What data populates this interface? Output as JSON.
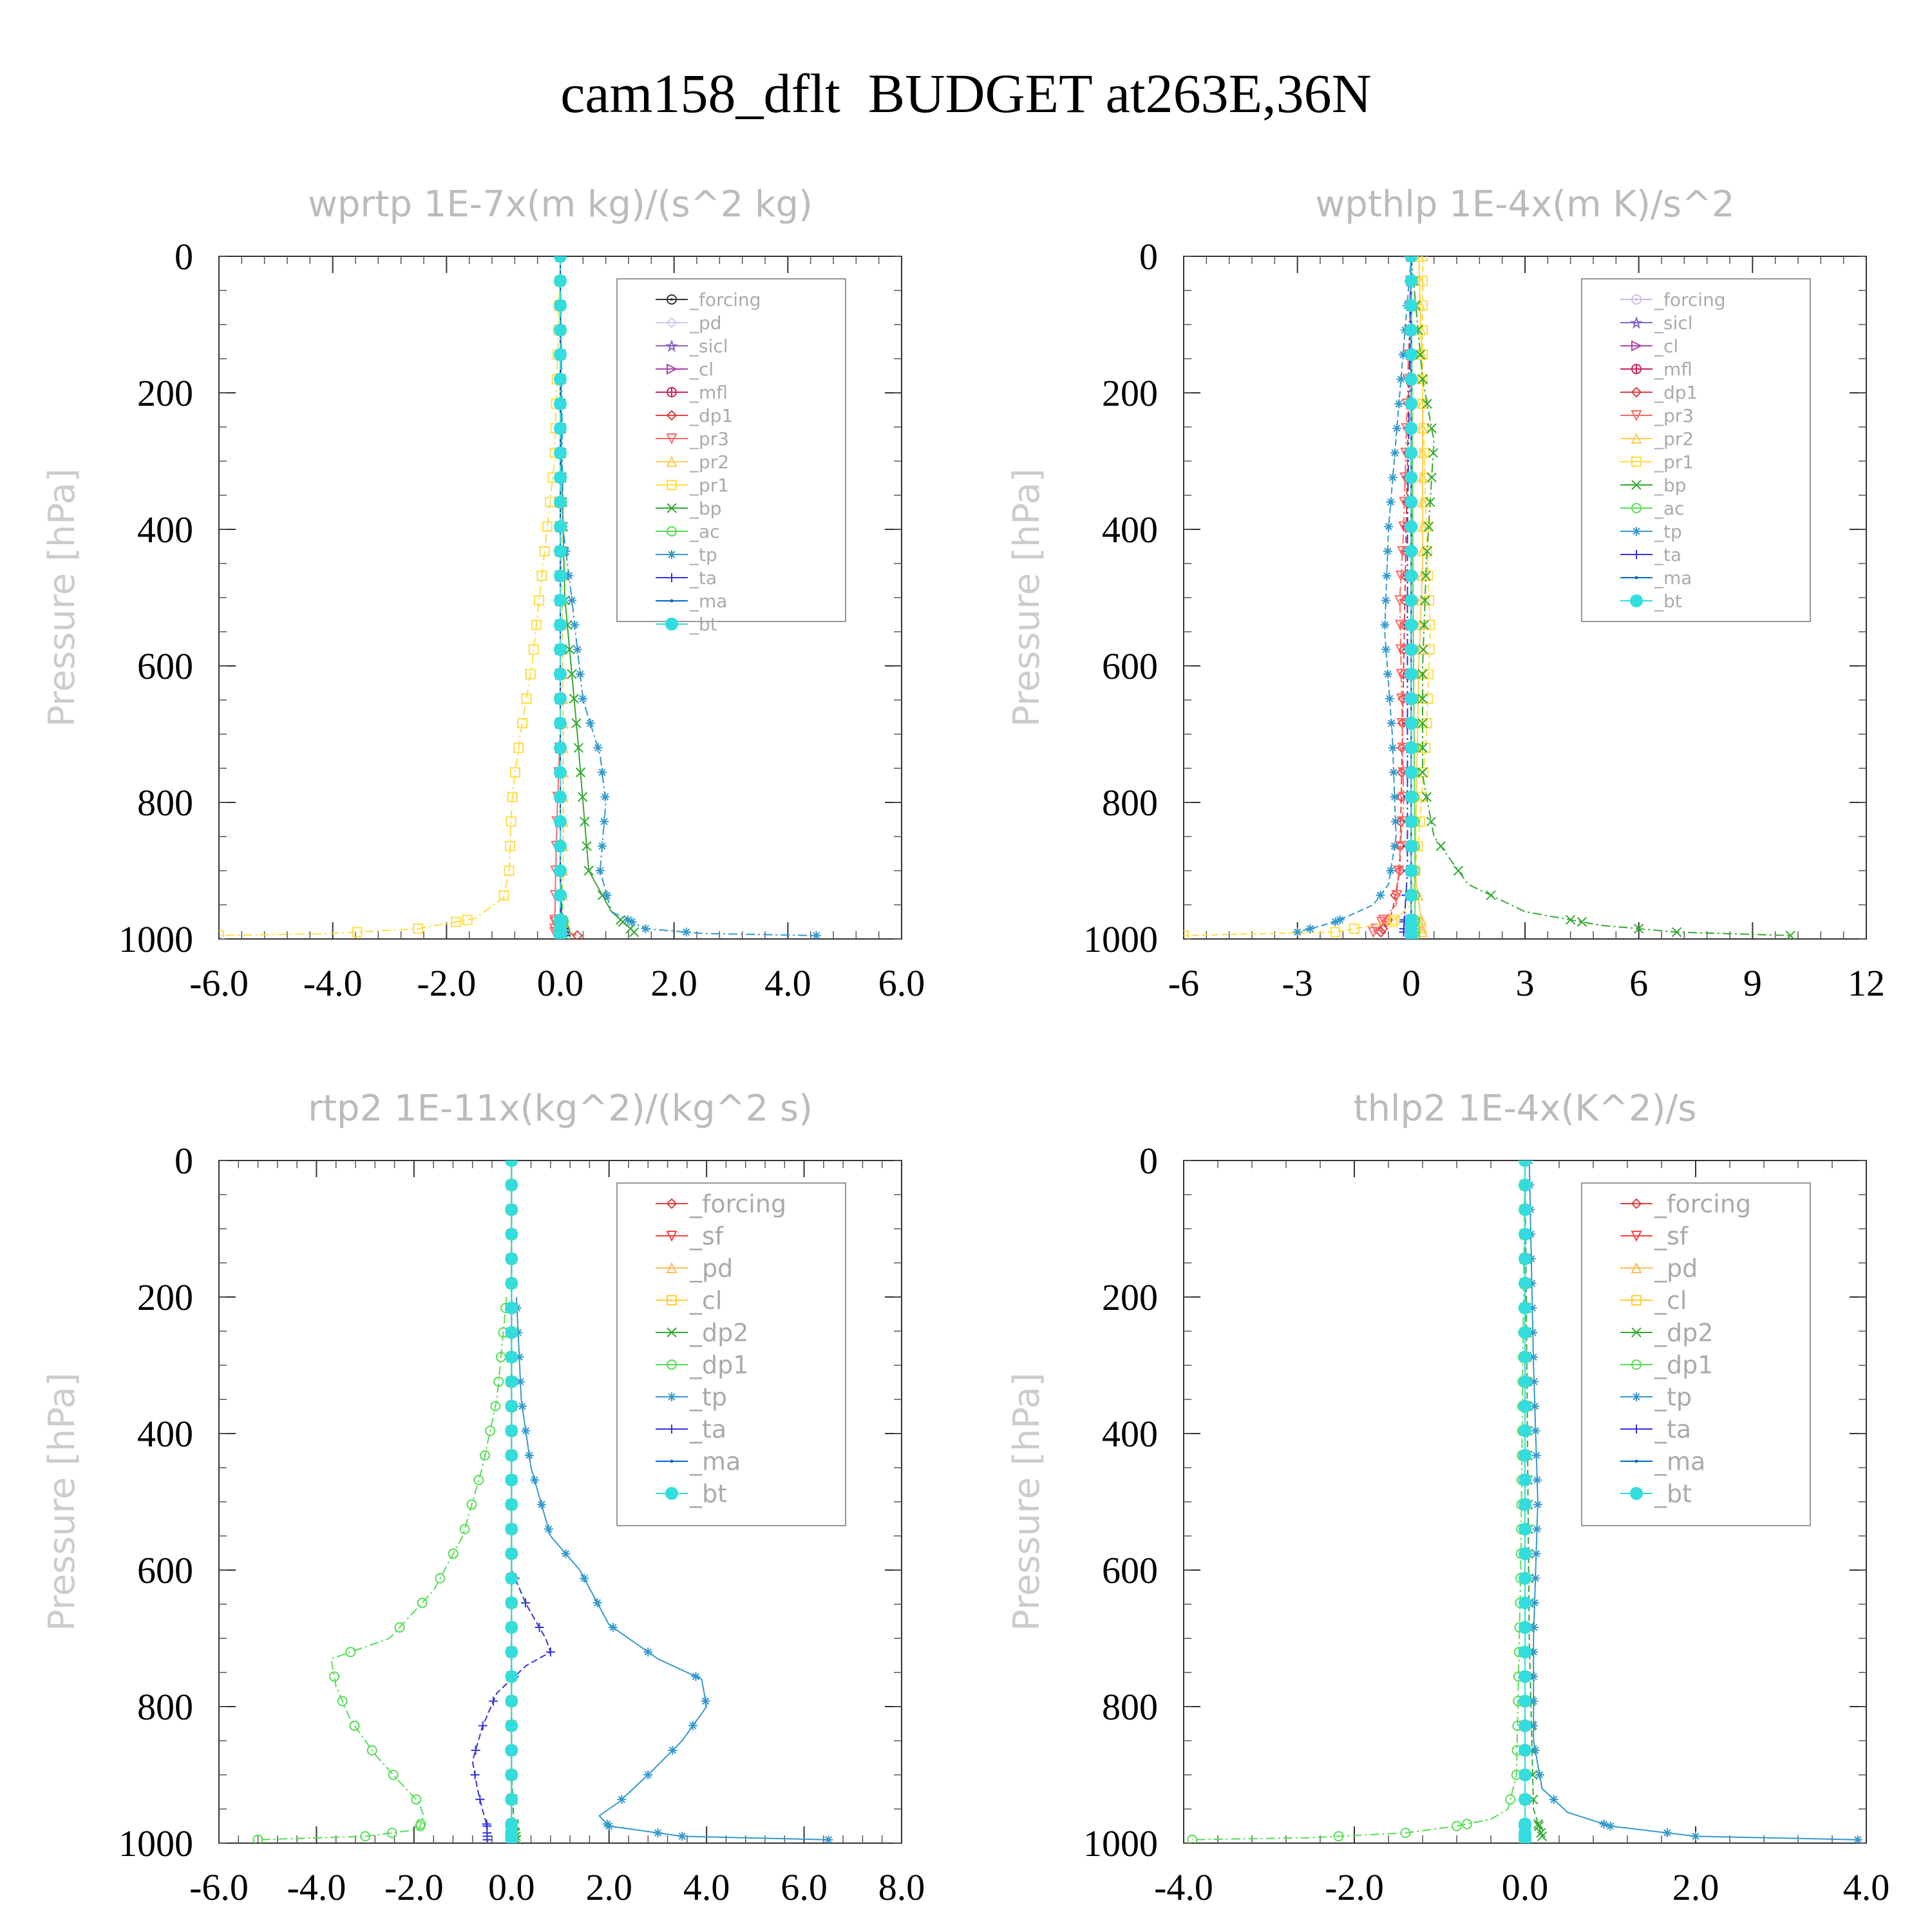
{
  "page": {
    "title": "cam158_dflt  BUDGET at263E,36N"
  },
  "chart_data": [
    {
      "type": "line",
      "title": "wprtp  1E-7x(m kg)/(s^2 kg)",
      "ylabel": "Pressure [hPa]",
      "xlim": [
        -6,
        6
      ],
      "ylim": [
        1000,
        0
      ],
      "x_ticks": [
        "-6.0",
        "-4.0",
        "-2.0",
        "0.0",
        "2.0",
        "4.0",
        "6.0"
      ],
      "y_ticks": [
        "0",
        "200",
        "400",
        "600",
        "800",
        "1000"
      ],
      "legend_position": "top-right",
      "series": [
        {
          "name": "_forcing",
          "color": "#333333",
          "marker": "circle-dot",
          "x": [
            0,
            0
          ],
          "y": [
            0,
            1000
          ]
        },
        {
          "name": "_pd",
          "color": "#ccccee",
          "marker": "diamond",
          "x": [
            0,
            0
          ],
          "y": [
            0,
            1000
          ]
        },
        {
          "name": "_sicl",
          "color": "#8866cc",
          "marker": "star",
          "x": [
            0,
            0
          ],
          "y": [
            0,
            1000
          ]
        },
        {
          "name": "_cl",
          "color": "#aa44aa",
          "marker": "triangle-right",
          "x": [
            0,
            0,
            0.02
          ],
          "y": [
            0,
            990,
            995
          ]
        },
        {
          "name": "_mfl",
          "color": "#cc2255",
          "marker": "circle-cross",
          "x": [
            0,
            0
          ],
          "y": [
            0,
            1000
          ]
        },
        {
          "name": "_dp1",
          "color": "#e04040",
          "marker": "diamond",
          "x": [
            0,
            0,
            0.02,
            0.1,
            0.3
          ],
          "y": [
            0,
            900,
            960,
            990,
            995
          ]
        },
        {
          "name": "_pr3",
          "color": "#ff6666",
          "marker": "triangle-down",
          "x": [
            0,
            0,
            -0.05,
            -0.08,
            -0.1
          ],
          "y": [
            0,
            700,
            800,
            900,
            990
          ]
        },
        {
          "name": "_pr2",
          "color": "#ffcc55",
          "marker": "triangle-up",
          "x": [
            0,
            0.02,
            0.05,
            0.05,
            0.02
          ],
          "y": [
            0,
            400,
            700,
            900,
            995
          ]
        },
        {
          "name": "_pr1",
          "color": "#ffdd44",
          "marker": "square",
          "x": [
            0,
            -0.1,
            -0.3,
            -0.5,
            -0.7,
            -0.8,
            -0.85,
            -0.9,
            -1.0,
            -1.5,
            -2.5,
            -4.0,
            -6.0
          ],
          "y": [
            0,
            300,
            450,
            600,
            700,
            760,
            800,
            900,
            940,
            970,
            985,
            992,
            995
          ]
        },
        {
          "name": "_bp",
          "color": "#33aa33",
          "marker": "x",
          "x": [
            0,
            0.02,
            0.08,
            0.3,
            0.4,
            0.5,
            0.9,
            1.3
          ],
          "y": [
            0,
            300,
            500,
            700,
            800,
            900,
            960,
            990
          ]
        },
        {
          "name": "_ac",
          "color": "#55dd55",
          "marker": "circle",
          "x": [
            0,
            0,
            0.05,
            0.1
          ],
          "y": [
            0,
            900,
            970,
            995
          ]
        },
        {
          "name": "_tp",
          "color": "#3399cc",
          "marker": "asterisk",
          "x": [
            0,
            0.05,
            0.2,
            0.4,
            0.7,
            0.8,
            0.7,
            0.9,
            1.5,
            2.5,
            4.5
          ],
          "y": [
            0,
            400,
            500,
            650,
            730,
            800,
            900,
            960,
            985,
            992,
            995
          ]
        },
        {
          "name": "_ta",
          "color": "#3333dd",
          "marker": "plus",
          "x": [
            0,
            0,
            0.02,
            0.1
          ],
          "y": [
            0,
            900,
            970,
            995
          ]
        },
        {
          "name": "_ma",
          "color": "#0066cc",
          "marker": "dot",
          "x": [
            0,
            0
          ],
          "y": [
            0,
            1000
          ]
        },
        {
          "name": "_bt",
          "color": "#33dddd",
          "marker": "filled-circle",
          "x": [
            0,
            0
          ],
          "y": [
            0,
            1000
          ]
        }
      ]
    },
    {
      "type": "line",
      "title": "wpthlp  1E-4x(m K)/s^2",
      "ylabel": "Pressure [hPa]",
      "xlim": [
        -6,
        12
      ],
      "ylim": [
        1000,
        0
      ],
      "x_ticks": [
        "-6",
        "-3",
        "0",
        "3",
        "6",
        "9",
        "12"
      ],
      "y_ticks": [
        "0",
        "200",
        "400",
        "600",
        "800",
        "1000"
      ],
      "legend_position": "top-right",
      "series": [
        {
          "name": "_forcing",
          "color": "#ccbbee",
          "marker": "circle-dot",
          "x": [
            0,
            0
          ],
          "y": [
            0,
            1000
          ]
        },
        {
          "name": "_sicl",
          "color": "#8866cc",
          "marker": "star",
          "x": [
            0,
            0
          ],
          "y": [
            0,
            1000
          ]
        },
        {
          "name": "_cl",
          "color": "#aa44aa",
          "marker": "triangle-right",
          "x": [
            0,
            0,
            0.05
          ],
          "y": [
            0,
            990,
            995
          ]
        },
        {
          "name": "_mfl",
          "color": "#cc2255",
          "marker": "circle-cross",
          "x": [
            0,
            0
          ],
          "y": [
            0,
            1000
          ]
        },
        {
          "name": "_dp1",
          "color": "#e04040",
          "marker": "diamond",
          "x": [
            0,
            -0.1,
            -0.2,
            -0.3,
            -0.5,
            -0.8
          ],
          "y": [
            0,
            300,
            600,
            900,
            960,
            990
          ]
        },
        {
          "name": "_pr3",
          "color": "#ff6666",
          "marker": "triangle-down",
          "x": [
            0,
            -0.1,
            -0.2,
            -0.3,
            -0.2,
            -0.4,
            -1.0
          ],
          "y": [
            0,
            200,
            400,
            500,
            800,
            950,
            990
          ]
        },
        {
          "name": "_pr2",
          "color": "#ffcc55",
          "marker": "triangle-up",
          "x": [
            0.2,
            0.3,
            0.3,
            0.2,
            0.1,
            0.3
          ],
          "y": [
            0,
            200,
            450,
            600,
            900,
            990
          ]
        },
        {
          "name": "_pr1",
          "color": "#ffdd44",
          "marker": "square",
          "x": [
            0.3,
            0.3,
            0.4,
            0.5,
            0.4,
            0.2,
            0,
            -0.5,
            -2.0,
            -6.0
          ],
          "y": [
            0,
            200,
            400,
            550,
            700,
            850,
            950,
            975,
            990,
            995
          ]
        },
        {
          "name": "_bp",
          "color": "#33aa33",
          "marker": "x",
          "x": [
            0,
            0.3,
            0.6,
            0.4,
            0.3,
            0.3,
            0.6,
            1.5,
            3.0,
            5.0,
            7.0,
            10.0
          ],
          "y": [
            0,
            180,
            270,
            450,
            600,
            760,
            850,
            920,
            960,
            980,
            990,
            995
          ]
        },
        {
          "name": "_ac",
          "color": "#55dd55",
          "marker": "circle",
          "x": [
            0,
            0.05,
            0.1,
            0.1
          ],
          "y": [
            0,
            500,
            900,
            995
          ]
        },
        {
          "name": "_tp",
          "color": "#3399cc",
          "marker": "asterisk",
          "x": [
            0,
            -0.3,
            -0.6,
            -0.7,
            -0.5,
            -0.4,
            -0.6,
            -1.0,
            -2.0,
            -3.0
          ],
          "y": [
            0,
            200,
            400,
            550,
            700,
            850,
            920,
            950,
            975,
            990
          ]
        },
        {
          "name": "_ta",
          "color": "#3333dd",
          "marker": "plus",
          "x": [
            0,
            -0.1,
            -0.1,
            -0.2
          ],
          "y": [
            0,
            400,
            900,
            990
          ]
        },
        {
          "name": "_ma",
          "color": "#0066cc",
          "marker": "dot",
          "x": [
            0,
            0
          ],
          "y": [
            0,
            1000
          ]
        },
        {
          "name": "_bt",
          "color": "#33dddd",
          "marker": "filled-circle",
          "x": [
            0,
            0
          ],
          "y": [
            0,
            1000
          ]
        }
      ]
    },
    {
      "type": "line",
      "title": "rtp2  1E-11x(kg^2)/(kg^2 s)",
      "ylabel": "Pressure [hPa]",
      "xlim": [
        -6,
        8
      ],
      "ylim": [
        1000,
        0
      ],
      "x_ticks": [
        "-6.0",
        "-4.0",
        "-2.0",
        "0.0",
        "2.0",
        "4.0",
        "6.0",
        "8.0"
      ],
      "y_ticks": [
        "0",
        "200",
        "400",
        "600",
        "800",
        "1000"
      ],
      "legend_position": "top-right",
      "series": [
        {
          "name": "_forcing",
          "color": "#e04040",
          "marker": "diamond",
          "x": [
            0,
            0
          ],
          "y": [
            0,
            1000
          ]
        },
        {
          "name": "_sf",
          "color": "#ff4444",
          "marker": "triangle-down",
          "x": [
            0,
            0
          ],
          "y": [
            0,
            1000
          ]
        },
        {
          "name": "_pd",
          "color": "#ffbb55",
          "marker": "triangle-up",
          "x": [
            0,
            0
          ],
          "y": [
            0,
            1000
          ]
        },
        {
          "name": "_cl",
          "color": "#ffcc33",
          "marker": "square",
          "x": [
            0,
            0
          ],
          "y": [
            0,
            1000
          ]
        },
        {
          "name": "_dp2",
          "color": "#33aa33",
          "marker": "x",
          "x": [
            0,
            0,
            0.05,
            0.1
          ],
          "y": [
            0,
            900,
            970,
            995
          ]
        },
        {
          "name": "_dp1",
          "color": "#55dd55",
          "marker": "circle",
          "x": [
            -0.1,
            -0.3,
            -0.6,
            -1.0,
            -1.6,
            -2.5,
            -3.7,
            -3.6,
            -3.3,
            -2.8,
            -2.3,
            -1.9,
            -1.8,
            -1.9,
            -3.0,
            -5.2
          ],
          "y": [
            200,
            350,
            450,
            550,
            630,
            700,
            730,
            770,
            820,
            870,
            910,
            940,
            960,
            980,
            990,
            995
          ]
        },
        {
          "name": "_tp",
          "color": "#3399cc",
          "marker": "asterisk",
          "x": [
            0.1,
            0.2,
            0.4,
            0.8,
            1.4,
            2.0,
            3.0,
            3.9,
            4.0,
            3.5,
            2.8,
            2.2,
            1.8,
            2.0,
            3.5,
            6.5
          ],
          "y": [
            200,
            350,
            450,
            550,
            600,
            680,
            730,
            760,
            800,
            850,
            900,
            940,
            960,
            975,
            990,
            995
          ]
        },
        {
          "name": "_ta",
          "color": "#3333dd",
          "marker": "plus",
          "x": [
            0,
            0.3,
            0.7,
            0.8,
            0.3,
            -0.3,
            -0.6,
            -0.8,
            -0.7,
            -0.6,
            -0.5,
            -0.5
          ],
          "y": [
            600,
            650,
            700,
            720,
            740,
            780,
            830,
            880,
            920,
            950,
            975,
            995
          ]
        },
        {
          "name": "_ma",
          "color": "#0066cc",
          "marker": "dot",
          "x": [
            0,
            0
          ],
          "y": [
            0,
            1000
          ]
        },
        {
          "name": "_bt",
          "color": "#33dddd",
          "marker": "filled-circle",
          "x": [
            0,
            0
          ],
          "y": [
            0,
            1000
          ]
        }
      ]
    },
    {
      "type": "line",
      "title": "thlp2  1E-4x(K^2)/s",
      "ylabel": "Pressure [hPa]",
      "xlim": [
        -4,
        4
      ],
      "ylim": [
        1000,
        0
      ],
      "x_ticks": [
        "-4.0",
        "-2.0",
        "0.0",
        "2.0",
        "4.0"
      ],
      "y_ticks": [
        "0",
        "200",
        "400",
        "600",
        "800",
        "1000"
      ],
      "legend_position": "top-right",
      "series": [
        {
          "name": "_forcing",
          "color": "#e04040",
          "marker": "diamond",
          "x": [
            0,
            0
          ],
          "y": [
            0,
            1000
          ]
        },
        {
          "name": "_sf",
          "color": "#ff4444",
          "marker": "triangle-down",
          "x": [
            0,
            0
          ],
          "y": [
            0,
            1000
          ]
        },
        {
          "name": "_pd",
          "color": "#ffbb55",
          "marker": "triangle-up",
          "x": [
            0,
            0
          ],
          "y": [
            0,
            1000
          ]
        },
        {
          "name": "_cl",
          "color": "#ffcc33",
          "marker": "square",
          "x": [
            0,
            0
          ],
          "y": [
            0,
            1000
          ]
        },
        {
          "name": "_dp2",
          "color": "#33aa33",
          "marker": "x",
          "x": [
            0,
            0.05,
            0.1,
            0.2
          ],
          "y": [
            0,
            700,
            950,
            990
          ]
        },
        {
          "name": "_dp1",
          "color": "#55dd55",
          "marker": "circle",
          "x": [
            0,
            -0.05,
            -0.1,
            -0.2,
            -0.4,
            -0.8,
            -1.4,
            -2.5,
            -3.9
          ],
          "y": [
            0,
            600,
            900,
            950,
            965,
            975,
            985,
            992,
            995
          ]
        },
        {
          "name": "_tp",
          "color": "#3399cc",
          "marker": "asterisk",
          "x": [
            0.05,
            0.1,
            0.15,
            0.1,
            0.1,
            0.2,
            0.5,
            1.0,
            2.0,
            3.9
          ],
          "y": [
            0,
            300,
            500,
            700,
            850,
            920,
            955,
            975,
            990,
            995
          ]
        },
        {
          "name": "_ta",
          "color": "#3333dd",
          "marker": "plus",
          "x": [
            0,
            0
          ],
          "y": [
            0,
            1000
          ]
        },
        {
          "name": "_ma",
          "color": "#0066cc",
          "marker": "dot",
          "x": [
            0,
            0
          ],
          "y": [
            0,
            1000
          ]
        },
        {
          "name": "_bt",
          "color": "#33dddd",
          "marker": "filled-circle",
          "x": [
            0,
            0
          ],
          "y": [
            0,
            1000
          ]
        }
      ]
    }
  ]
}
